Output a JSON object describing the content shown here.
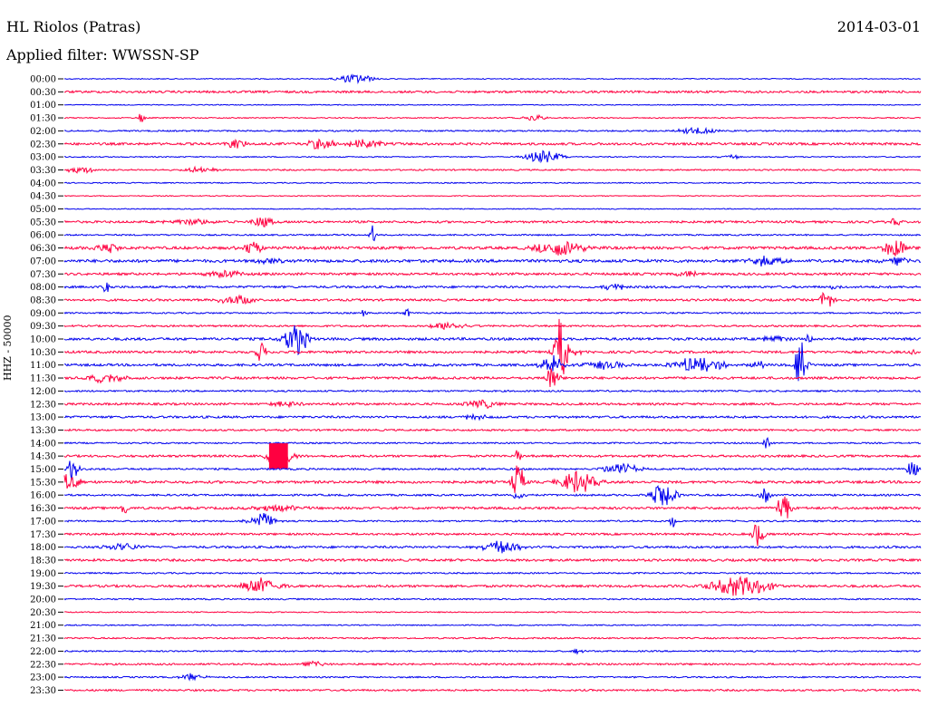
{
  "header": {
    "station": "HL Riolos (Patras)",
    "date": "2014-03-01",
    "filter": "Applied filter: WWSSN-SP"
  },
  "chart_data": {
    "type": "line",
    "title": "HL Riolos (Patras)",
    "subtitle": "Applied filter: WWSSN-SP",
    "ylabel": "HHZ - 50000",
    "xlabel": "",
    "row_interval_minutes": 30,
    "colors": {
      "even_row": "#0000ee",
      "odd_row": "#ff0040"
    },
    "rows": [
      {
        "time": "00:00",
        "noise": 0.5,
        "events": [
          {
            "t": 0.34,
            "amp": 5,
            "dur": 0.03
          }
        ]
      },
      {
        "time": "00:30",
        "noise": 1.2,
        "events": []
      },
      {
        "time": "01:00",
        "noise": 0.5,
        "events": []
      },
      {
        "time": "01:30",
        "noise": 0.6,
        "events": [
          {
            "t": 0.09,
            "amp": 6,
            "dur": 0.005
          },
          {
            "t": 0.55,
            "amp": 3,
            "dur": 0.02
          }
        ]
      },
      {
        "time": "02:00",
        "noise": 0.8,
        "events": [
          {
            "t": 0.74,
            "amp": 4,
            "dur": 0.03
          }
        ]
      },
      {
        "time": "02:30",
        "noise": 1.3,
        "events": [
          {
            "t": 0.2,
            "amp": 5,
            "dur": 0.02
          },
          {
            "t": 0.3,
            "amp": 7,
            "dur": 0.02
          },
          {
            "t": 0.35,
            "amp": 5,
            "dur": 0.03
          }
        ]
      },
      {
        "time": "03:00",
        "noise": 0.6,
        "events": [
          {
            "t": 0.56,
            "amp": 7,
            "dur": 0.03
          },
          {
            "t": 0.78,
            "amp": 2,
            "dur": 0.02
          }
        ]
      },
      {
        "time": "03:30",
        "noise": 0.8,
        "events": [
          {
            "t": 0.02,
            "amp": 3,
            "dur": 0.03
          },
          {
            "t": 0.16,
            "amp": 3,
            "dur": 0.03
          }
        ]
      },
      {
        "time": "04:00",
        "noise": 0.6,
        "events": []
      },
      {
        "time": "04:30",
        "noise": 0.5,
        "events": []
      },
      {
        "time": "05:00",
        "noise": 0.5,
        "events": []
      },
      {
        "time": "05:30",
        "noise": 1.2,
        "events": [
          {
            "t": 0.15,
            "amp": 3,
            "dur": 0.04
          },
          {
            "t": 0.23,
            "amp": 6,
            "dur": 0.02
          },
          {
            "t": 0.97,
            "amp": 4,
            "dur": 0.01
          }
        ]
      },
      {
        "time": "06:00",
        "noise": 0.8,
        "events": [
          {
            "t": 0.36,
            "amp": 11,
            "dur": 0.005
          }
        ]
      },
      {
        "time": "06:30",
        "noise": 1.5,
        "events": [
          {
            "t": 0.05,
            "amp": 5,
            "dur": 0.02
          },
          {
            "t": 0.22,
            "amp": 7,
            "dur": 0.02
          },
          {
            "t": 0.58,
            "amp": 9,
            "dur": 0.04
          },
          {
            "t": 0.97,
            "amp": 10,
            "dur": 0.02
          }
        ]
      },
      {
        "time": "07:00",
        "noise": 1.6,
        "events": [
          {
            "t": 0.24,
            "amp": 4,
            "dur": 0.02
          },
          {
            "t": 0.82,
            "amp": 5,
            "dur": 0.03
          },
          {
            "t": 0.97,
            "amp": 5,
            "dur": 0.02
          }
        ]
      },
      {
        "time": "07:30",
        "noise": 1.3,
        "events": [
          {
            "t": 0.19,
            "amp": 4,
            "dur": 0.03
          },
          {
            "t": 0.73,
            "amp": 4,
            "dur": 0.02
          }
        ]
      },
      {
        "time": "08:00",
        "noise": 1.2,
        "events": [
          {
            "t": 0.05,
            "amp": 12,
            "dur": 0.005
          },
          {
            "t": 0.64,
            "amp": 4,
            "dur": 0.02
          },
          {
            "t": 0.9,
            "amp": 3,
            "dur": 0.01
          }
        ]
      },
      {
        "time": "08:30",
        "noise": 1.2,
        "events": [
          {
            "t": 0.2,
            "amp": 5,
            "dur": 0.03
          },
          {
            "t": 0.89,
            "amp": 12,
            "dur": 0.01
          }
        ]
      },
      {
        "time": "09:00",
        "noise": 0.8,
        "events": [
          {
            "t": 0.35,
            "amp": 5,
            "dur": 0.005
          },
          {
            "t": 0.4,
            "amp": 5,
            "dur": 0.005
          }
        ]
      },
      {
        "time": "09:30",
        "noise": 1.0,
        "events": [
          {
            "t": 0.45,
            "amp": 5,
            "dur": 0.03
          }
        ]
      },
      {
        "time": "10:00",
        "noise": 1.4,
        "events": [
          {
            "t": 0.27,
            "amp": 18,
            "dur": 0.02
          },
          {
            "t": 0.83,
            "amp": 4,
            "dur": 0.02
          },
          {
            "t": 0.87,
            "amp": 10,
            "dur": 0.005
          }
        ]
      },
      {
        "time": "10:30",
        "noise": 1.3,
        "events": [
          {
            "t": 0.23,
            "amp": 10,
            "dur": 0.01
          },
          {
            "t": 0.58,
            "amp": 40,
            "dur": 0.01
          },
          {
            "t": 0.6,
            "amp": 10,
            "dur": 0.005
          },
          {
            "t": 0.99,
            "amp": 4,
            "dur": 0.005
          }
        ]
      },
      {
        "time": "11:00",
        "noise": 1.3,
        "events": [
          {
            "t": 0.57,
            "amp": 10,
            "dur": 0.02
          },
          {
            "t": 0.63,
            "amp": 5,
            "dur": 0.03
          },
          {
            "t": 0.74,
            "amp": 9,
            "dur": 0.04
          },
          {
            "t": 0.81,
            "amp": 5,
            "dur": 0.01
          },
          {
            "t": 0.86,
            "amp": 28,
            "dur": 0.01
          }
        ]
      },
      {
        "time": "11:30",
        "noise": 1.3,
        "events": [
          {
            "t": 0.05,
            "amp": 5,
            "dur": 0.03
          },
          {
            "t": 0.57,
            "amp": 15,
            "dur": 0.01
          }
        ]
      },
      {
        "time": "12:00",
        "noise": 0.9,
        "events": []
      },
      {
        "time": "12:30",
        "noise": 1.2,
        "events": [
          {
            "t": 0.26,
            "amp": 3,
            "dur": 0.03
          },
          {
            "t": 0.49,
            "amp": 4,
            "dur": 0.03
          }
        ]
      },
      {
        "time": "13:00",
        "noise": 1.2,
        "events": [
          {
            "t": 0.48,
            "amp": 3,
            "dur": 0.02
          }
        ]
      },
      {
        "time": "13:30",
        "noise": 1.0,
        "events": []
      },
      {
        "time": "14:00",
        "noise": 0.8,
        "events": [
          {
            "t": 0.82,
            "amp": 10,
            "dur": 0.005
          }
        ]
      },
      {
        "time": "14:30",
        "noise": 1.2,
        "events": [
          {
            "t": 0.25,
            "amp": 14,
            "dur": 0.022,
            "box": true
          },
          {
            "t": 0.53,
            "amp": 8,
            "dur": 0.005
          }
        ]
      },
      {
        "time": "15:00",
        "noise": 1.0,
        "events": [
          {
            "t": 0.01,
            "amp": 14,
            "dur": 0.01
          },
          {
            "t": 0.65,
            "amp": 6,
            "dur": 0.03
          },
          {
            "t": 0.99,
            "amp": 10,
            "dur": 0.01
          }
        ]
      },
      {
        "time": "15:30",
        "noise": 1.4,
        "events": [
          {
            "t": 0.0,
            "amp": 8,
            "dur": 0.03
          },
          {
            "t": 0.53,
            "amp": 20,
            "dur": 0.01
          },
          {
            "t": 0.6,
            "amp": 12,
            "dur": 0.03
          }
        ]
      },
      {
        "time": "16:00",
        "noise": 1.0,
        "events": [
          {
            "t": 0.53,
            "amp": 6,
            "dur": 0.01
          },
          {
            "t": 0.7,
            "amp": 14,
            "dur": 0.02
          },
          {
            "t": 0.82,
            "amp": 8,
            "dur": 0.01
          }
        ]
      },
      {
        "time": "16:30",
        "noise": 1.3,
        "events": [
          {
            "t": 0.07,
            "amp": 12,
            "dur": 0.005
          },
          {
            "t": 0.25,
            "amp": 4,
            "dur": 0.04
          },
          {
            "t": 0.84,
            "amp": 22,
            "dur": 0.01
          }
        ]
      },
      {
        "time": "17:00",
        "noise": 0.9,
        "events": [
          {
            "t": 0.23,
            "amp": 10,
            "dur": 0.02
          },
          {
            "t": 0.71,
            "amp": 8,
            "dur": 0.005
          }
        ]
      },
      {
        "time": "17:30",
        "noise": 1.1,
        "events": [
          {
            "t": 0.81,
            "amp": 14,
            "dur": 0.01
          }
        ]
      },
      {
        "time": "18:00",
        "noise": 1.2,
        "events": [
          {
            "t": 0.07,
            "amp": 4,
            "dur": 0.03
          },
          {
            "t": 0.51,
            "amp": 7,
            "dur": 0.03
          }
        ]
      },
      {
        "time": "18:30",
        "noise": 1.3,
        "events": []
      },
      {
        "time": "19:00",
        "noise": 0.8,
        "events": []
      },
      {
        "time": "19:30",
        "noise": 1.3,
        "events": [
          {
            "t": 0.23,
            "amp": 9,
            "dur": 0.03
          },
          {
            "t": 0.79,
            "amp": 11,
            "dur": 0.05
          }
        ]
      },
      {
        "time": "20:00",
        "noise": 0.8,
        "events": []
      },
      {
        "time": "20:30",
        "noise": 0.6,
        "events": []
      },
      {
        "time": "21:00",
        "noise": 0.6,
        "events": []
      },
      {
        "time": "21:30",
        "noise": 0.8,
        "events": []
      },
      {
        "time": "22:00",
        "noise": 0.8,
        "events": [
          {
            "t": 0.6,
            "amp": 3,
            "dur": 0.01
          }
        ]
      },
      {
        "time": "22:30",
        "noise": 1.0,
        "events": [
          {
            "t": 0.29,
            "amp": 3,
            "dur": 0.02
          }
        ]
      },
      {
        "time": "23:00",
        "noise": 0.8,
        "events": [
          {
            "t": 0.15,
            "amp": 4,
            "dur": 0.02
          }
        ]
      },
      {
        "time": "23:30",
        "noise": 1.0,
        "events": []
      }
    ]
  }
}
